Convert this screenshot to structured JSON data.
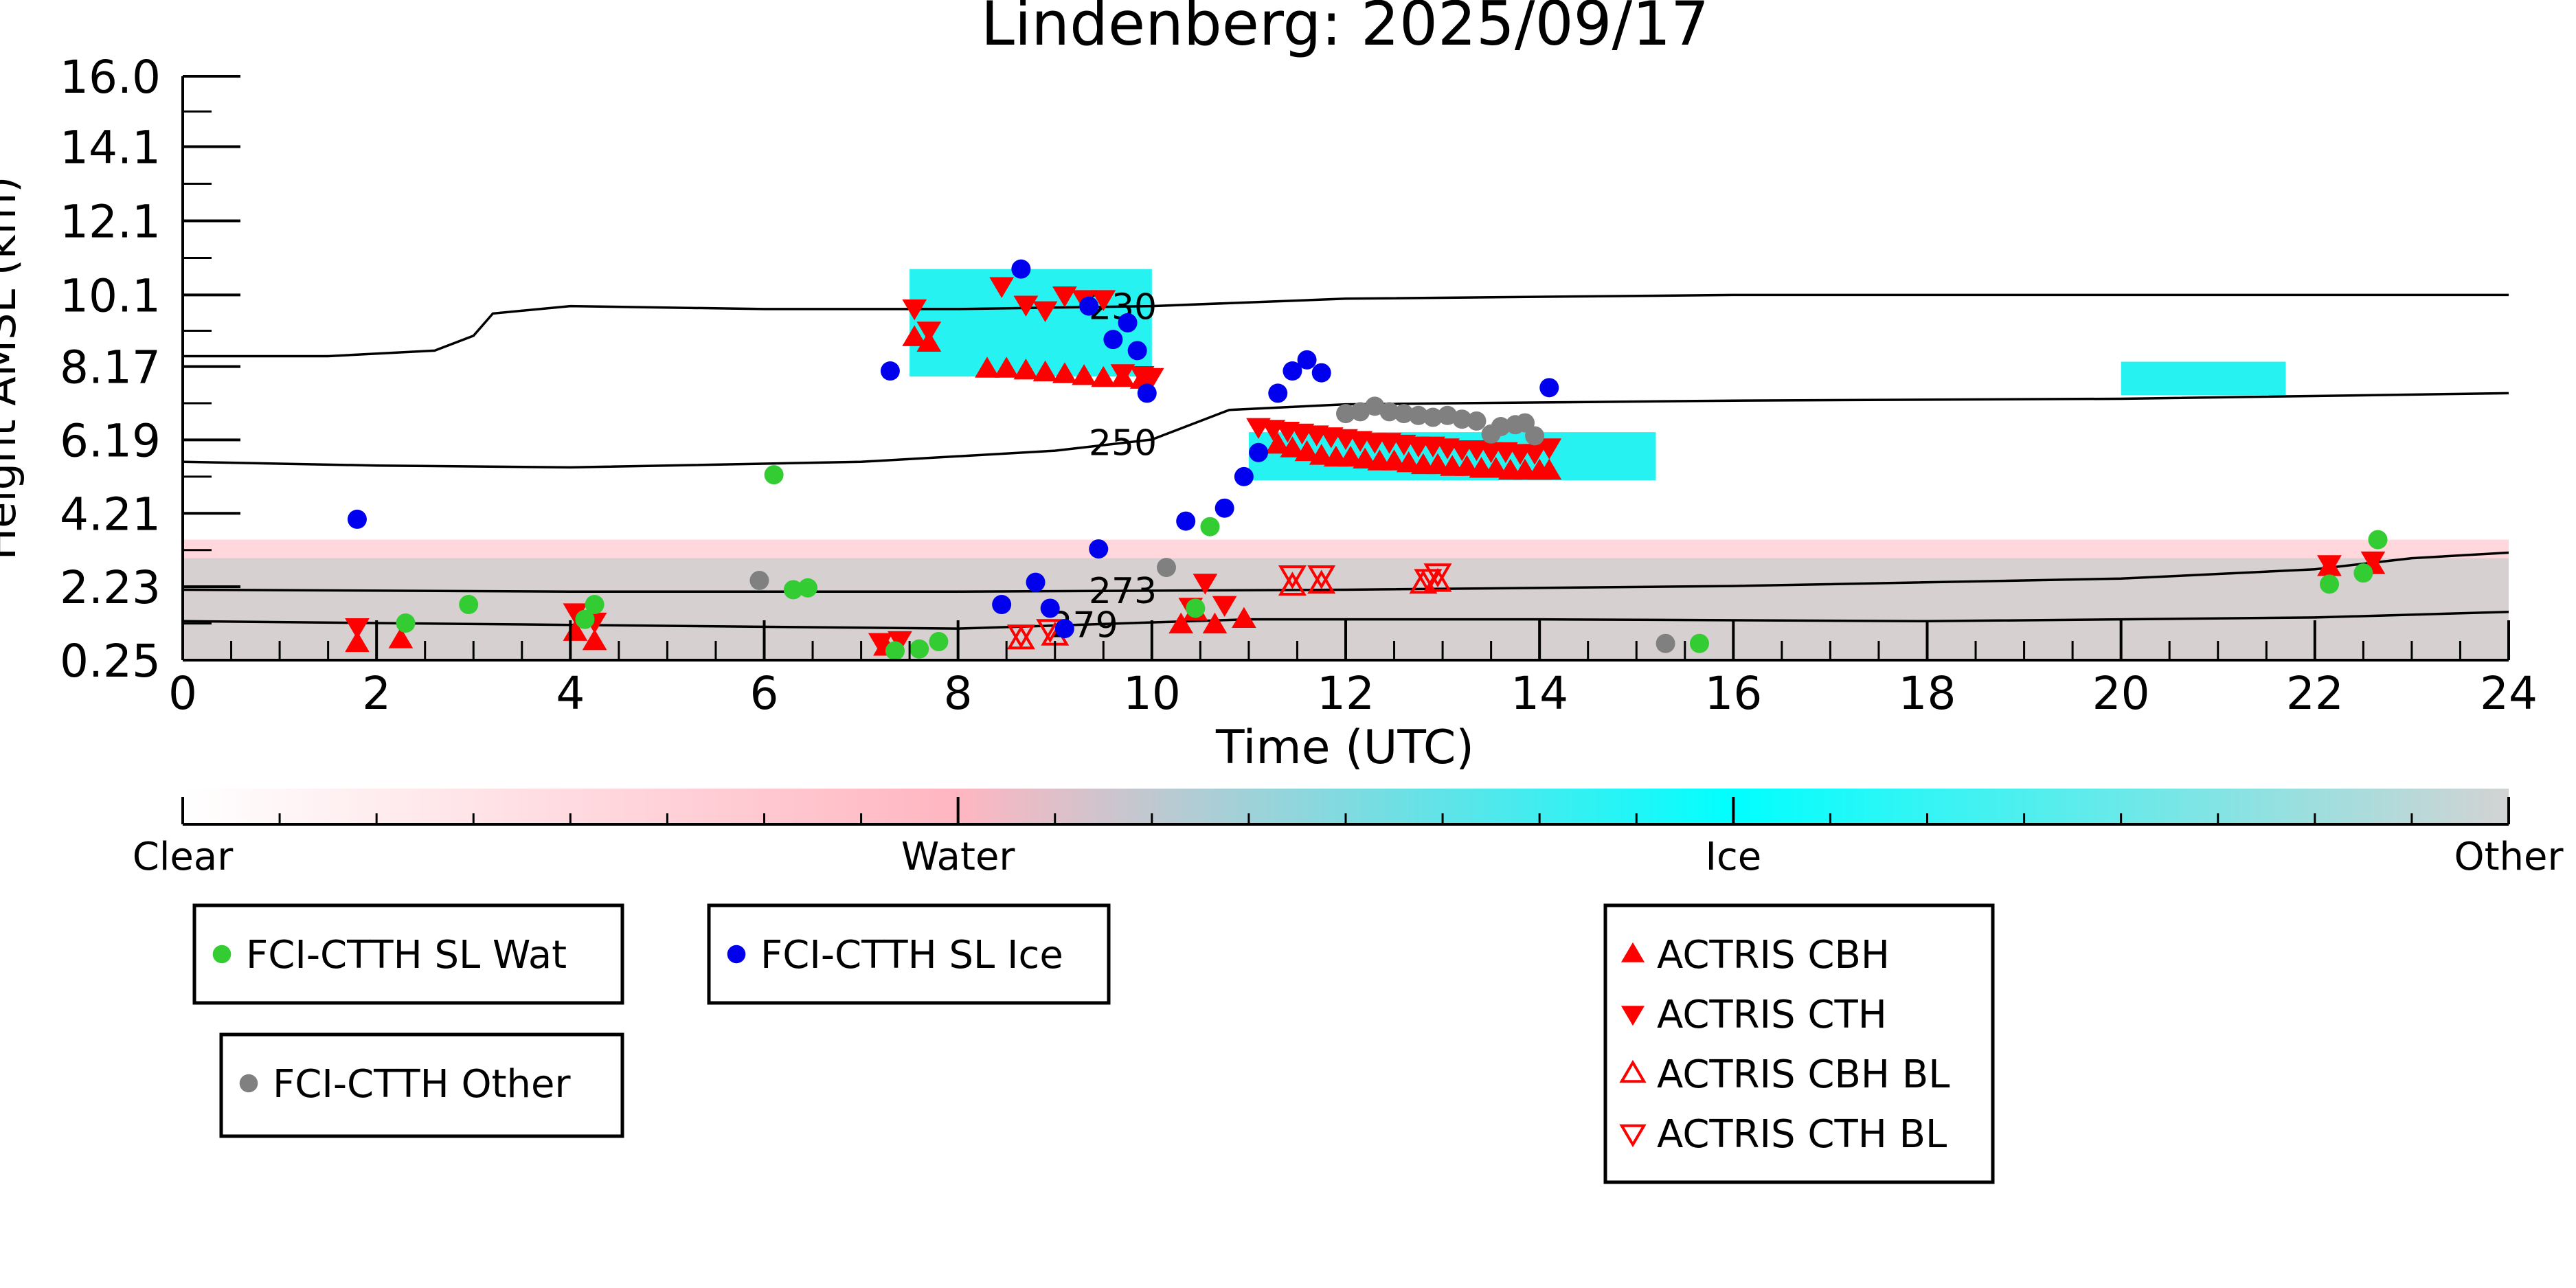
{
  "chart_data": {
    "type": "scatter",
    "title": "Lindenberg: 2025/09/17",
    "xlabel": "Time (UTC)",
    "ylabel": "Height AMSL (km)",
    "xlim": [
      0,
      24
    ],
    "ylim": [
      0.25,
      16.0
    ],
    "x_ticks": [
      "0",
      "2",
      "4",
      "6",
      "8",
      "10",
      "12",
      "14",
      "16",
      "18",
      "20",
      "22",
      "24"
    ],
    "y_ticks": [
      "0.25",
      "2.23",
      "4.21",
      "6.19",
      "8.17",
      "10.1",
      "12.1",
      "14.1",
      "16.0"
    ],
    "colorbar": {
      "labels": [
        "Clear",
        "Water",
        "Ice",
        "Other"
      ],
      "colors": [
        "#ffffff",
        "#ffb6c1",
        "#00ffff",
        "#d3d3d3"
      ]
    },
    "colors": {
      "wat": "#33cc33",
      "ice": "#0000ee",
      "other": "#808080",
      "actris": "#ff0000",
      "cloud_ice": "#00f0f0",
      "cloud_water": "#ffb6c1",
      "cloud_other": "#cfcfcf"
    },
    "isotherms": [
      {
        "label": "230",
        "label_x": 9.7,
        "points": [
          [
            0,
            8.45
          ],
          [
            1.5,
            8.45
          ],
          [
            2.6,
            8.6
          ],
          [
            3.0,
            9.0
          ],
          [
            3.2,
            9.6
          ],
          [
            4.0,
            9.8
          ],
          [
            6.0,
            9.72
          ],
          [
            8.0,
            9.72
          ],
          [
            10.0,
            9.8
          ],
          [
            12.0,
            10.0
          ],
          [
            16.0,
            10.1
          ],
          [
            20.0,
            10.1
          ],
          [
            24.0,
            10.1
          ]
        ]
      },
      {
        "label": "250",
        "label_x": 9.7,
        "points": [
          [
            0,
            5.6
          ],
          [
            2.0,
            5.5
          ],
          [
            4.0,
            5.45
          ],
          [
            7.0,
            5.6
          ],
          [
            9.0,
            5.9
          ],
          [
            10.0,
            6.2
          ],
          [
            10.8,
            7.0
          ],
          [
            12.0,
            7.15
          ],
          [
            16.0,
            7.25
          ],
          [
            20.0,
            7.3
          ],
          [
            24.0,
            7.45
          ]
        ]
      },
      {
        "label": "273",
        "label_x": 9.7,
        "points": [
          [
            0,
            2.15
          ],
          [
            4.0,
            2.1
          ],
          [
            8.0,
            2.1
          ],
          [
            12.0,
            2.15
          ],
          [
            16.0,
            2.25
          ],
          [
            20.0,
            2.45
          ],
          [
            22.0,
            2.7
          ],
          [
            23.0,
            3.0
          ],
          [
            24.0,
            3.15
          ]
        ]
      },
      {
        "label": "279",
        "label_x": 9.3,
        "points": [
          [
            0,
            1.3
          ],
          [
            4.0,
            1.2
          ],
          [
            8.0,
            1.1
          ],
          [
            11.0,
            1.35
          ],
          [
            14.0,
            1.35
          ],
          [
            18.0,
            1.3
          ],
          [
            22.0,
            1.4
          ],
          [
            24.0,
            1.55
          ]
        ]
      }
    ],
    "series": [
      {
        "name": "FCI-CTTH SL Wat",
        "marker": "circle",
        "color": "#33cc33",
        "x": [
          2.3,
          2.95,
          4.15,
          4.25,
          6.1,
          6.3,
          6.45,
          7.35,
          7.6,
          7.8,
          10.45,
          10.6,
          15.65,
          22.15,
          22.5,
          22.65
        ],
        "y": [
          1.25,
          1.75,
          1.35,
          1.75,
          5.25,
          2.15,
          2.2,
          0.5,
          0.55,
          0.75,
          1.65,
          3.85,
          0.7,
          2.3,
          2.6,
          3.5
        ]
      },
      {
        "name": "FCI-CTTH SL Ice",
        "marker": "circle",
        "color": "#0000ee",
        "x": [
          1.8,
          7.3,
          8.45,
          8.65,
          8.8,
          8.95,
          9.1,
          9.35,
          9.45,
          9.6,
          9.75,
          9.85,
          9.95,
          10.35,
          10.75,
          10.95,
          11.1,
          11.3,
          11.45,
          11.6,
          11.75,
          14.1
        ],
        "y": [
          4.05,
          8.05,
          1.75,
          10.8,
          2.35,
          1.65,
          1.1,
          9.8,
          3.25,
          8.9,
          9.35,
          8.6,
          7.45,
          4.0,
          4.35,
          5.2,
          5.85,
          7.45,
          8.05,
          8.35,
          8.0,
          7.6
        ]
      },
      {
        "name": "FCI-CTTH Other",
        "marker": "circle",
        "color": "#808080",
        "x": [
          5.95,
          10.15,
          12.0,
          12.15,
          12.3,
          12.45,
          12.6,
          12.75,
          12.9,
          13.05,
          13.2,
          13.35,
          13.5,
          13.6,
          13.75,
          13.85,
          13.95,
          15.3
        ],
        "y": [
          2.4,
          2.75,
          6.9,
          6.95,
          7.1,
          6.95,
          6.9,
          6.85,
          6.8,
          6.85,
          6.75,
          6.7,
          6.35,
          6.55,
          6.6,
          6.65,
          6.3,
          0.7
        ]
      },
      {
        "name": "ACTRIS CBH",
        "marker": "triangle-up",
        "color": "#ff0000",
        "x": [
          1.8,
          2.25,
          4.05,
          4.25,
          7.25,
          7.55,
          7.7,
          8.3,
          8.5,
          8.7,
          8.9,
          9.1,
          9.3,
          9.5,
          9.7,
          9.9,
          10.3,
          10.45,
          10.65,
          10.95,
          11.3,
          11.45,
          11.6,
          11.75,
          11.9,
          12.05,
          12.2,
          12.35,
          12.5,
          12.65,
          12.8,
          12.95,
          13.1,
          13.25,
          13.4,
          13.55,
          13.7,
          13.85,
          14.0,
          14.1,
          22.15,
          22.6
        ],
        "y": [
          0.7,
          0.8,
          1.0,
          0.75,
          0.6,
          8.95,
          8.8,
          8.1,
          8.1,
          8.05,
          8.0,
          7.95,
          7.9,
          7.85,
          7.85,
          7.8,
          1.2,
          1.55,
          1.2,
          1.35,
          6.05,
          5.95,
          5.85,
          5.75,
          5.7,
          5.7,
          5.65,
          5.6,
          5.6,
          5.55,
          5.5,
          5.5,
          5.45,
          5.45,
          5.4,
          5.4,
          5.35,
          5.35,
          5.35,
          5.35,
          2.75,
          2.8
        ]
      },
      {
        "name": "ACTRIS CTH",
        "marker": "triangle-down",
        "color": "#ff0000",
        "x": [
          1.8,
          4.05,
          4.25,
          7.2,
          7.4,
          7.55,
          7.7,
          8.45,
          8.7,
          8.9,
          9.1,
          9.3,
          9.5,
          9.7,
          9.9,
          10.0,
          10.4,
          10.55,
          10.75,
          11.1,
          11.25,
          11.4,
          11.55,
          11.7,
          11.85,
          12.0,
          12.15,
          12.3,
          12.45,
          12.6,
          12.75,
          12.9,
          13.05,
          13.2,
          13.35,
          13.5,
          13.65,
          13.8,
          13.95,
          14.1,
          22.15,
          22.6
        ],
        "y": [
          1.15,
          1.55,
          1.3,
          0.75,
          0.8,
          9.75,
          9.15,
          10.35,
          9.85,
          9.7,
          10.1,
          10.0,
          10.0,
          8.0,
          7.95,
          7.9,
          1.7,
          2.35,
          1.75,
          6.55,
          6.5,
          6.45,
          6.4,
          6.35,
          6.3,
          6.25,
          6.2,
          6.15,
          6.15,
          6.1,
          6.05,
          6.05,
          6.0,
          5.95,
          5.95,
          5.9,
          5.9,
          5.85,
          5.85,
          6.0,
          2.85,
          2.95
        ]
      },
      {
        "name": "ACTRIS CBH BL",
        "marker": "triangle-up-open",
        "color": "#ff0000",
        "x": [
          8.65,
          9.0,
          11.45,
          11.75,
          12.8,
          12.95
        ],
        "y": [
          0.8,
          0.9,
          2.25,
          2.3,
          2.3,
          2.35
        ]
      },
      {
        "name": "ACTRIS CTH BL",
        "marker": "triangle-down-open",
        "color": "#ff0000",
        "x": [
          8.65,
          8.95,
          11.45,
          11.75,
          12.85,
          12.95
        ],
        "y": [
          0.95,
          1.1,
          2.55,
          2.55,
          2.45,
          2.6
        ]
      }
    ],
    "cloud_mask": [
      {
        "class": "Ice",
        "x": [
          7.5,
          10.0
        ],
        "y": [
          7.9,
          10.8
        ]
      },
      {
        "class": "Ice",
        "x": [
          11.0,
          15.2
        ],
        "y": [
          5.1,
          6.4
        ]
      },
      {
        "class": "Ice",
        "x": [
          20.0,
          21.7
        ],
        "y": [
          7.4,
          8.3
        ]
      },
      {
        "class": "Water",
        "x": [
          0.0,
          24.0
        ],
        "y": [
          0.3,
          3.5
        ]
      },
      {
        "class": "Other",
        "x": [
          0.0,
          24.0
        ],
        "y": [
          0.25,
          3.0
        ]
      }
    ],
    "legends": [
      {
        "entries": [
          "FCI-CTTH SL Wat"
        ]
      },
      {
        "entries": [
          "FCI-CTTH SL Ice"
        ]
      },
      {
        "entries": [
          "FCI-CTTH Other"
        ]
      },
      {
        "entries": [
          "ACTRIS CBH",
          "ACTRIS CTH",
          "ACTRIS CBH BL",
          "ACTRIS CTH BL"
        ]
      }
    ]
  }
}
